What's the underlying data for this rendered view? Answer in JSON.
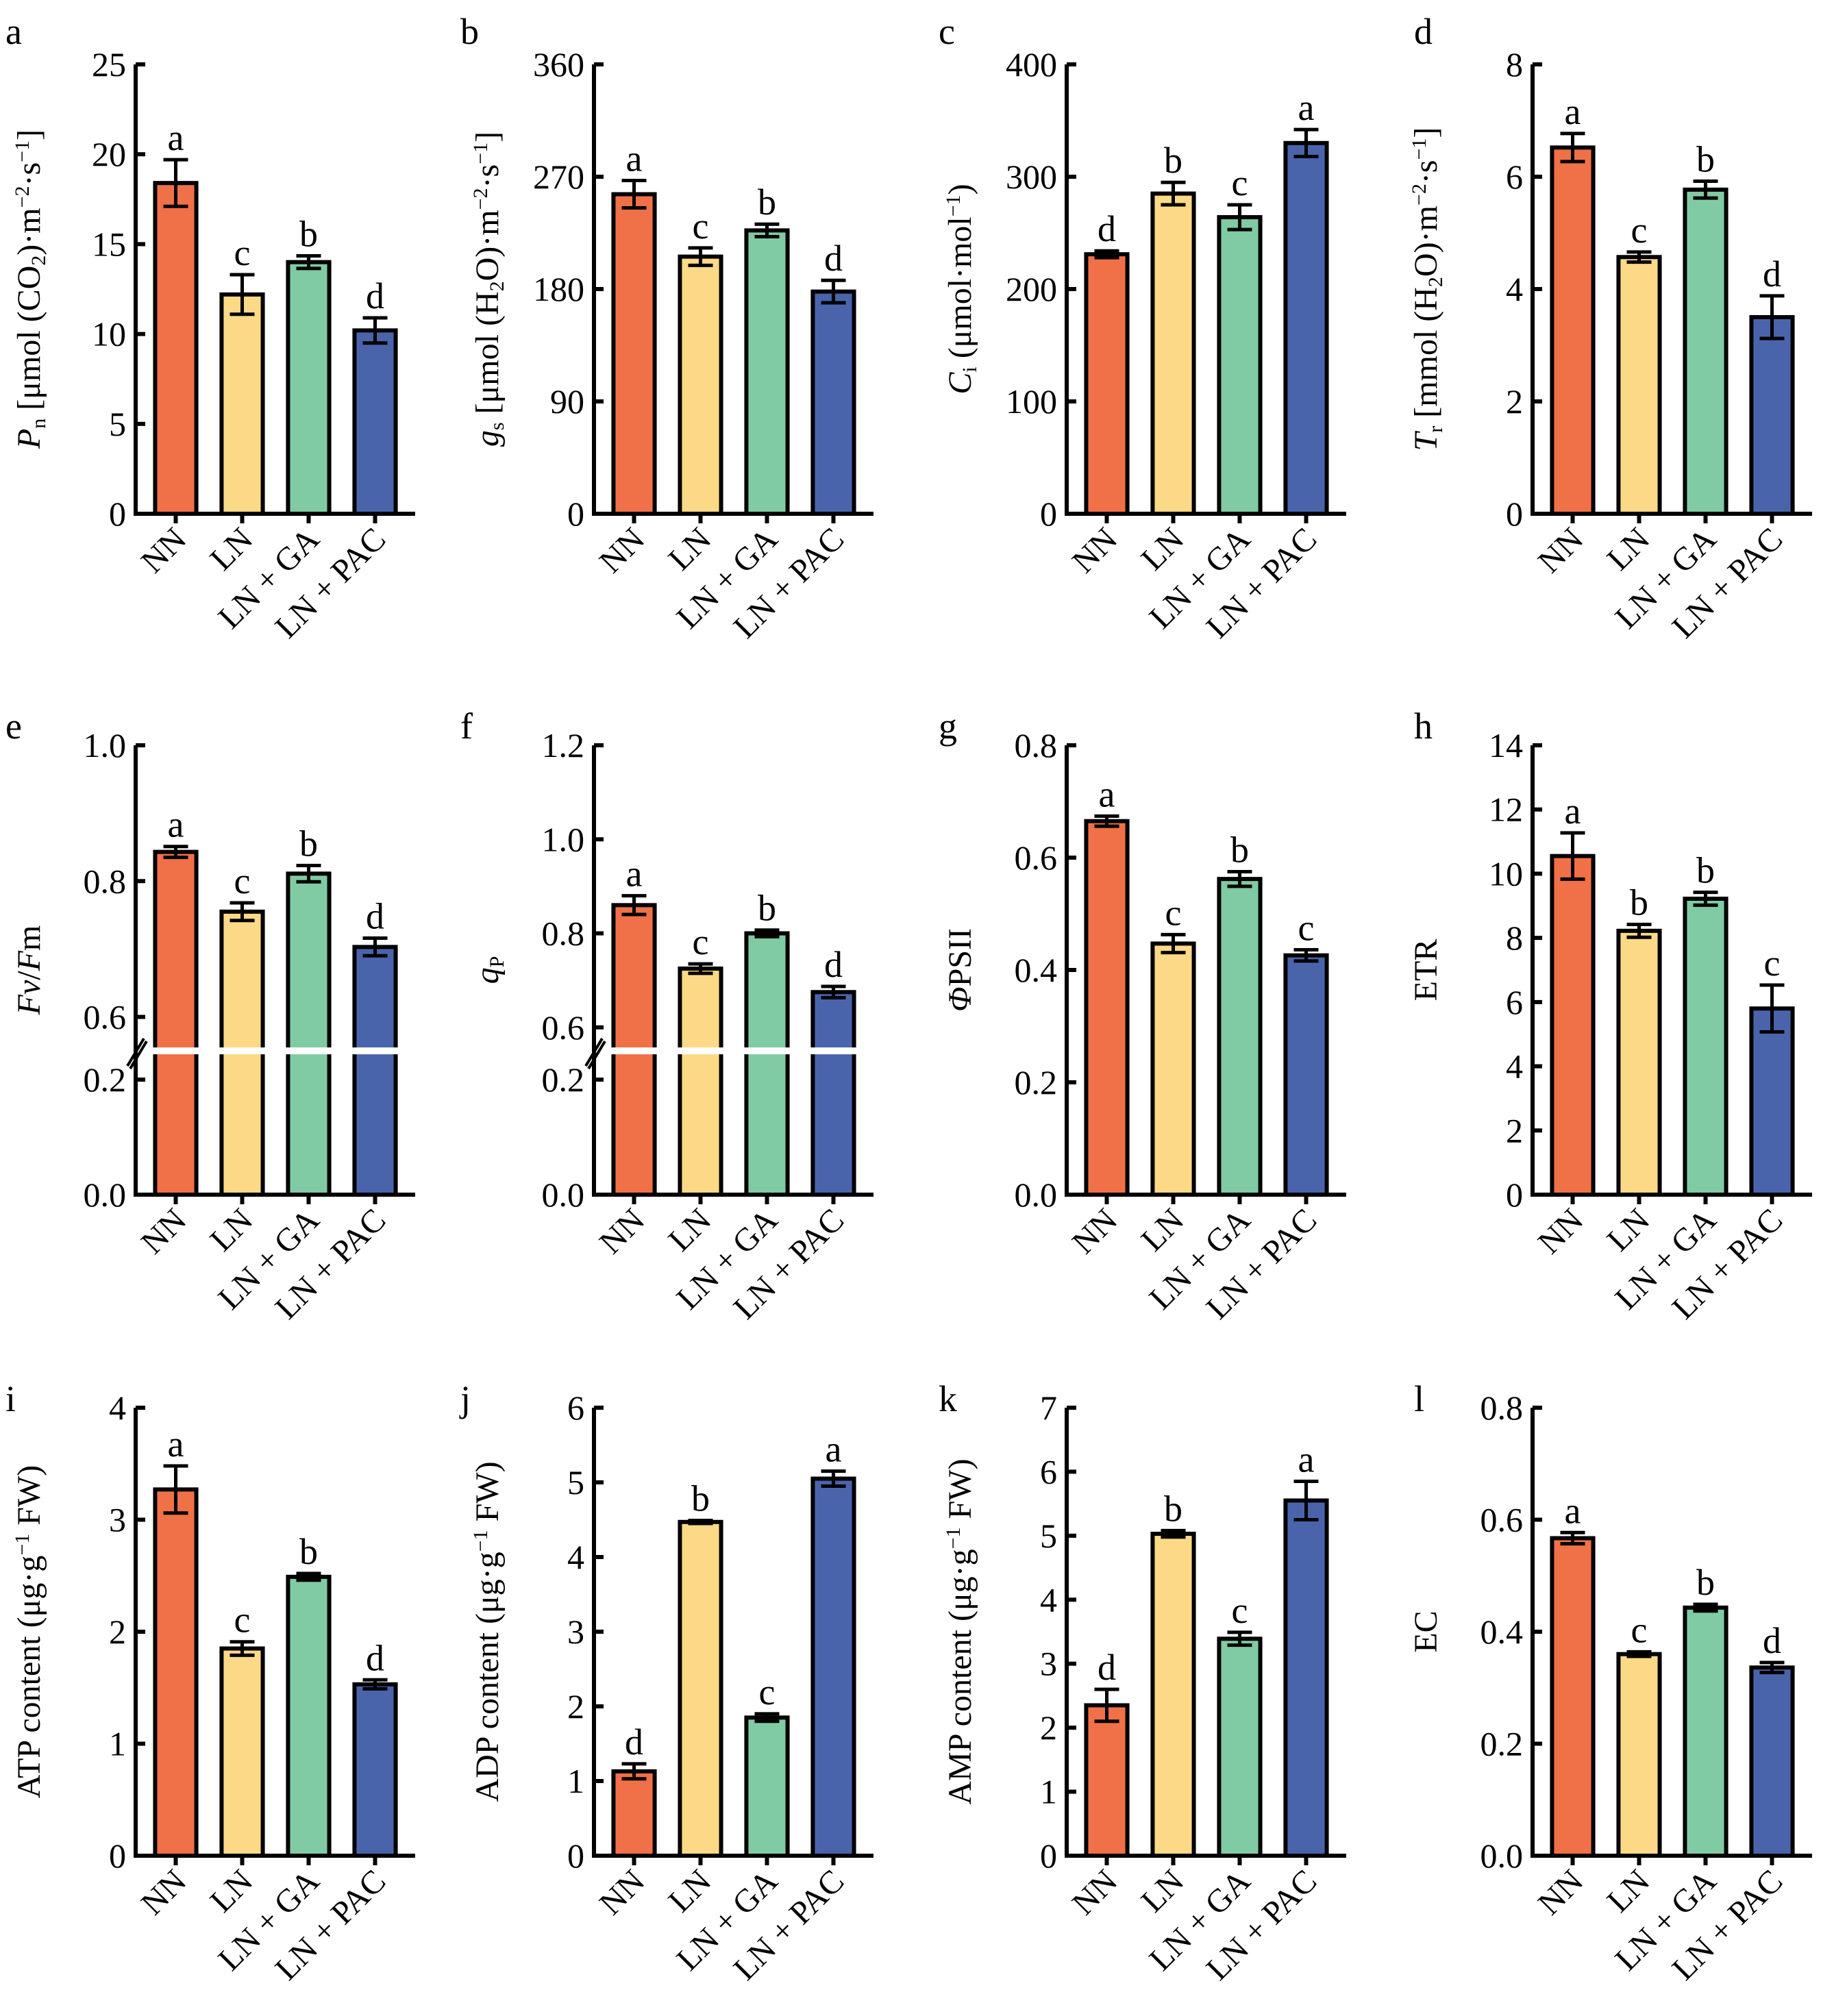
{
  "figure": {
    "categories": [
      "NN",
      "LN",
      "LN + GA",
      "LN + PAC"
    ],
    "colors": {
      "NN": "#F07147",
      "LN": "#FBD986",
      "LN + GA": "#80CBA3",
      "LN + PAC": "#4A64AC"
    }
  },
  "chart_data": [
    {
      "panel": "a",
      "type": "bar",
      "ylabel": "Pn [μmol (CO2)·m−2·s−1]",
      "ylabel_parts": [
        {
          "t": "P",
          "i": true
        },
        {
          "t": "n",
          "sub": true
        },
        {
          "t": " [μmol (CO"
        },
        {
          "t": "2",
          "sub": true
        },
        {
          "t": ")·m"
        },
        {
          "t": "−2",
          "sup": true
        },
        {
          "t": "·s"
        },
        {
          "t": "−1",
          "sup": true
        },
        {
          "t": "]"
        }
      ],
      "ylim": [
        0,
        25
      ],
      "yticks": [
        0,
        5,
        10,
        15,
        20,
        25
      ],
      "ytick_labels": [
        "0",
        "5",
        "10",
        "15",
        "20",
        "25"
      ],
      "categories": [
        "NN",
        "LN",
        "LN + GA",
        "LN + PAC"
      ],
      "values": [
        18.4,
        12.2,
        14.0,
        10.2
      ],
      "errors": [
        1.3,
        1.1,
        0.35,
        0.7
      ],
      "significance": [
        "a",
        "c",
        "b",
        "d"
      ]
    },
    {
      "panel": "b",
      "type": "bar",
      "ylabel": "gs [μmol (H2O)·m−2·s−1]",
      "ylabel_parts": [
        {
          "t": "g",
          "i": true
        },
        {
          "t": "s",
          "sub": true
        },
        {
          "t": " [μmol (H"
        },
        {
          "t": "2",
          "sub": true
        },
        {
          "t": "O)·m"
        },
        {
          "t": "−2",
          "sup": true
        },
        {
          "t": "·s"
        },
        {
          "t": "−1",
          "sup": true
        },
        {
          "t": "]"
        }
      ],
      "ylim": [
        0,
        360
      ],
      "yticks": [
        0,
        90,
        180,
        270,
        360
      ],
      "ytick_labels": [
        "0",
        "90",
        "180",
        "270",
        "360"
      ],
      "categories": [
        "NN",
        "LN",
        "LN + GA",
        "LN + PAC"
      ],
      "values": [
        256,
        206,
        227,
        178
      ],
      "errors": [
        11,
        7,
        5,
        9
      ],
      "significance": [
        "a",
        "c",
        "b",
        "d"
      ]
    },
    {
      "panel": "c",
      "type": "bar",
      "ylabel": "Ci (μmol·mol−1)",
      "ylabel_parts": [
        {
          "t": "C",
          "i": true
        },
        {
          "t": "i",
          "sub": true
        },
        {
          "t": " (μmol·mol"
        },
        {
          "t": "−1",
          "sup": true
        },
        {
          "t": ")"
        }
      ],
      "ylim": [
        0,
        400
      ],
      "yticks": [
        0,
        100,
        200,
        300,
        400
      ],
      "ytick_labels": [
        "0",
        "100",
        "200",
        "300",
        "400"
      ],
      "categories": [
        "NN",
        "LN",
        "LN + GA",
        "LN + PAC"
      ],
      "values": [
        231,
        285,
        264,
        330
      ],
      "errors": [
        3,
        10,
        11,
        12
      ],
      "significance": [
        "d",
        "b",
        "c",
        "a"
      ]
    },
    {
      "panel": "d",
      "type": "bar",
      "ylabel": "Tr [mmol (H2O)·m−2·s−1]",
      "ylabel_parts": [
        {
          "t": "T",
          "i": true
        },
        {
          "t": "r",
          "sub": true
        },
        {
          "t": " [mmol (H"
        },
        {
          "t": "2",
          "sub": true
        },
        {
          "t": "O)·m"
        },
        {
          "t": "−2",
          "sup": true
        },
        {
          "t": "·s"
        },
        {
          "t": "−1",
          "sup": true
        },
        {
          "t": "]"
        }
      ],
      "ylim": [
        0,
        8
      ],
      "yticks": [
        0,
        2,
        4,
        6,
        8
      ],
      "ytick_labels": [
        "0",
        "2",
        "4",
        "6",
        "8"
      ],
      "categories": [
        "NN",
        "LN",
        "LN + GA",
        "LN + PAC"
      ],
      "values": [
        6.52,
        4.57,
        5.77,
        3.5
      ],
      "errors": [
        0.25,
        0.09,
        0.15,
        0.38
      ],
      "significance": [
        "a",
        "c",
        "b",
        "d"
      ]
    },
    {
      "panel": "e",
      "type": "bar",
      "ylabel": "Fv/Fm",
      "ylabel_parts": [
        {
          "t": "Fv",
          "i": true
        },
        {
          "t": "/"
        },
        {
          "t": "F",
          "i": true
        },
        {
          "t": "m"
        }
      ],
      "ylim": [
        0,
        1.0
      ],
      "axis_break": [
        0.25,
        0.55
      ],
      "yticks": [
        0,
        0.2,
        0.6,
        0.8,
        1.0
      ],
      "ytick_labels": [
        "0.0",
        "0.2",
        "0.6",
        "0.8",
        "1.0"
      ],
      "categories": [
        "NN",
        "LN",
        "LN + GA",
        "LN + PAC"
      ],
      "values": [
        0.843,
        0.755,
        0.811,
        0.703
      ],
      "errors": [
        0.008,
        0.013,
        0.012,
        0.013
      ],
      "significance": [
        "a",
        "c",
        "b",
        "d"
      ]
    },
    {
      "panel": "f",
      "type": "bar",
      "ylabel": "qP",
      "ylabel_parts": [
        {
          "t": "q",
          "i": true
        },
        {
          "t": "P",
          "sub": true
        }
      ],
      "ylim": [
        0,
        1.2
      ],
      "axis_break": [
        0.25,
        0.55
      ],
      "yticks": [
        0,
        0.2,
        0.6,
        0.8,
        1.0,
        1.2
      ],
      "ytick_labels": [
        "0.0",
        "0.2",
        "0.6",
        "0.8",
        "1.0",
        "1.2"
      ],
      "categories": [
        "NN",
        "LN",
        "LN + GA",
        "LN + PAC"
      ],
      "values": [
        0.86,
        0.725,
        0.8,
        0.675
      ],
      "errors": [
        0.02,
        0.01,
        0.007,
        0.012
      ],
      "significance": [
        "a",
        "c",
        "b",
        "d"
      ]
    },
    {
      "panel": "g",
      "type": "bar",
      "ylabel": "ΦPSII",
      "ylabel_parts": [
        {
          "t": "Φ",
          "i": true
        },
        {
          "t": "PSII"
        }
      ],
      "ylim": [
        0,
        0.8
      ],
      "yticks": [
        0,
        0.2,
        0.4,
        0.6,
        0.8
      ],
      "ytick_labels": [
        "0.0",
        "0.2",
        "0.4",
        "0.6",
        "0.8"
      ],
      "categories": [
        "NN",
        "LN",
        "LN + GA",
        "LN + PAC"
      ],
      "values": [
        0.665,
        0.447,
        0.562,
        0.426
      ],
      "errors": [
        0.009,
        0.016,
        0.013,
        0.01
      ],
      "significance": [
        "a",
        "c",
        "b",
        "c"
      ]
    },
    {
      "panel": "h",
      "type": "bar",
      "ylabel": "ETR",
      "ylabel_parts": [
        {
          "t": "ETR"
        }
      ],
      "ylim": [
        0,
        14
      ],
      "yticks": [
        0,
        2,
        4,
        6,
        8,
        10,
        12,
        14
      ],
      "ytick_labels": [
        "0",
        "2",
        "4",
        "6",
        "8",
        "10",
        "12",
        "14"
      ],
      "categories": [
        "NN",
        "LN",
        "LN + GA",
        "LN + PAC"
      ],
      "values": [
        10.55,
        8.22,
        9.22,
        5.8
      ],
      "errors": [
        0.72,
        0.2,
        0.2,
        0.73
      ],
      "significance": [
        "a",
        "b",
        "b",
        "c"
      ]
    },
    {
      "panel": "i",
      "type": "bar",
      "ylabel": "ATP content (μg·g−1 FW)",
      "ylabel_parts": [
        {
          "t": "ATP content (μg·g"
        },
        {
          "t": "−1",
          "sup": true
        },
        {
          "t": " FW)"
        }
      ],
      "ylim": [
        0,
        4
      ],
      "yticks": [
        0,
        1,
        2,
        3,
        4
      ],
      "ytick_labels": [
        "0",
        "1",
        "2",
        "3",
        "4"
      ],
      "categories": [
        "NN",
        "LN",
        "LN + GA",
        "LN + PAC"
      ],
      "values": [
        3.27,
        1.85,
        2.49,
        1.53
      ],
      "errors": [
        0.21,
        0.06,
        0.03,
        0.04
      ],
      "significance": [
        "a",
        "c",
        "b",
        "d"
      ]
    },
    {
      "panel": "j",
      "type": "bar",
      "ylabel": "ADP content (μg·g−1 FW)",
      "ylabel_parts": [
        {
          "t": "ADP content (μg·g"
        },
        {
          "t": "−1",
          "sup": true
        },
        {
          "t": " FW)"
        }
      ],
      "ylim": [
        0,
        6
      ],
      "yticks": [
        0,
        1,
        2,
        3,
        4,
        5,
        6
      ],
      "ytick_labels": [
        "0",
        "1",
        "2",
        "3",
        "4",
        "5",
        "6"
      ],
      "categories": [
        "NN",
        "LN",
        "LN + GA",
        "LN + PAC"
      ],
      "values": [
        1.13,
        4.47,
        1.85,
        5.05
      ],
      "errors": [
        0.1,
        0.02,
        0.05,
        0.1
      ],
      "significance": [
        "d",
        "b",
        "c",
        "a"
      ]
    },
    {
      "panel": "k",
      "type": "bar",
      "ylabel": "AMP content (μg·g−1 FW)",
      "ylabel_parts": [
        {
          "t": "AMP content (μg·g"
        },
        {
          "t": "−1",
          "sup": true
        },
        {
          "t": " FW)"
        }
      ],
      "ylim": [
        0,
        7
      ],
      "yticks": [
        0,
        1,
        2,
        3,
        4,
        5,
        6,
        7
      ],
      "ytick_labels": [
        "0",
        "1",
        "2",
        "3",
        "4",
        "5",
        "6",
        "7"
      ],
      "categories": [
        "NN",
        "LN",
        "LN + GA",
        "LN + PAC"
      ],
      "values": [
        2.35,
        5.03,
        3.39,
        5.55
      ],
      "errors": [
        0.25,
        0.05,
        0.1,
        0.3
      ],
      "significance": [
        "d",
        "b",
        "c",
        "a"
      ]
    },
    {
      "panel": "l",
      "type": "bar",
      "ylabel": "EC",
      "ylabel_parts": [
        {
          "t": "EC"
        }
      ],
      "ylim": [
        0,
        0.8
      ],
      "yticks": [
        0,
        0.2,
        0.4,
        0.6,
        0.8
      ],
      "ytick_labels": [
        "0.0",
        "0.2",
        "0.4",
        "0.6",
        "0.8"
      ],
      "categories": [
        "NN",
        "LN",
        "LN + GA",
        "LN + PAC"
      ],
      "values": [
        0.567,
        0.36,
        0.443,
        0.336
      ],
      "errors": [
        0.01,
        0.004,
        0.006,
        0.009
      ],
      "significance": [
        "a",
        "c",
        "b",
        "d"
      ]
    }
  ]
}
